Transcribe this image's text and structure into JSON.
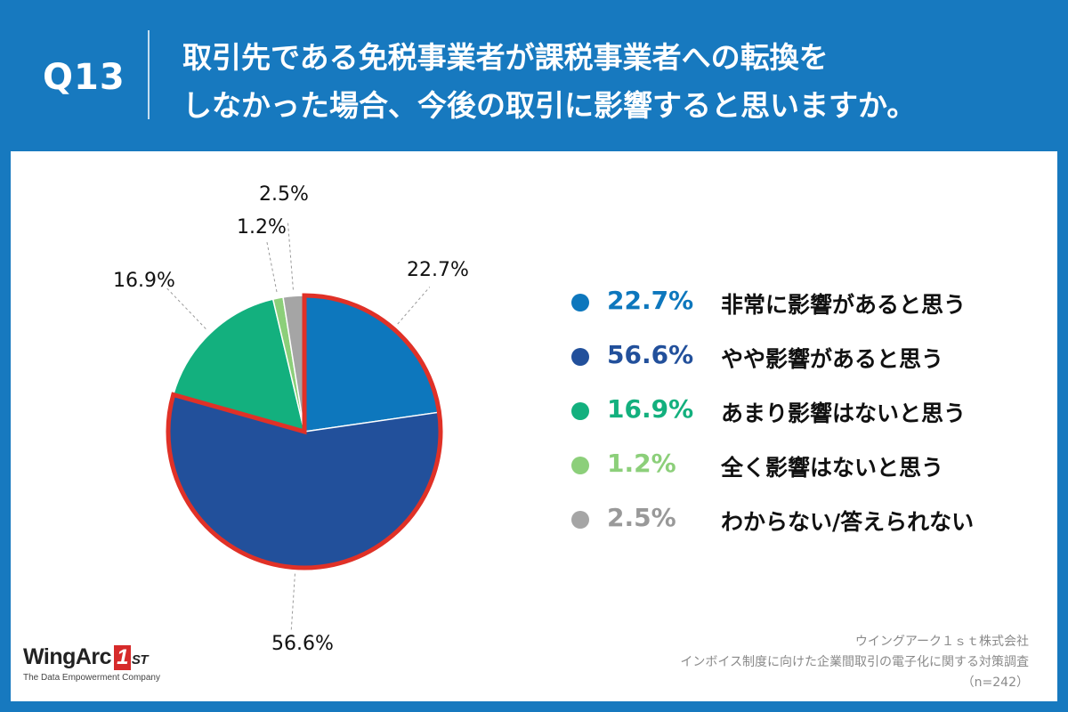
{
  "header": {
    "question_number": "Q13",
    "question_line1": "取引先である免税事業者が課税事業者への転換を",
    "question_line2": "しなかった場合、今後の取引に影響すると思いますか。"
  },
  "chart_data": {
    "type": "pie",
    "title": "取引先である免税事業者が課税事業者への転換をしなかった場合、今後の取引に影響すると思いますか。",
    "categories": [
      "非常に影響があると思う",
      "やや影響があると思う",
      "あまり影響はないと思う",
      "全く影響はないと思う",
      "わからない/答えられない"
    ],
    "values": [
      22.7,
      56.6,
      16.9,
      1.2,
      2.5
    ],
    "value_labels": [
      "22.7%",
      "56.6%",
      "16.9%",
      "1.2%",
      "2.5%"
    ],
    "colors": [
      "#0d77bd",
      "#22509b",
      "#13b07e",
      "#8ccf7a",
      "#a5a5a5"
    ],
    "pct_text_colors": [
      "#0d77bd",
      "#22509b",
      "#13b07e",
      "#8ccf7a",
      "#999999"
    ],
    "highlight": {
      "categories": [
        "非常に影響があると思う",
        "やや影響があると思う"
      ],
      "color": "#e03127"
    },
    "start": "top",
    "direction": "clockwise"
  },
  "footer": {
    "logo_text": "WingArc",
    "logo_mark": "1",
    "logo_suffix": "ST",
    "logo_tagline": "The Data Empowerment Company",
    "source_company": "ウイングアーク１ｓｔ株式会社",
    "source_survey": "インボイス制度に向けた企業間取引の電子化に関する対策調査",
    "sample_size": "（n=242）"
  }
}
